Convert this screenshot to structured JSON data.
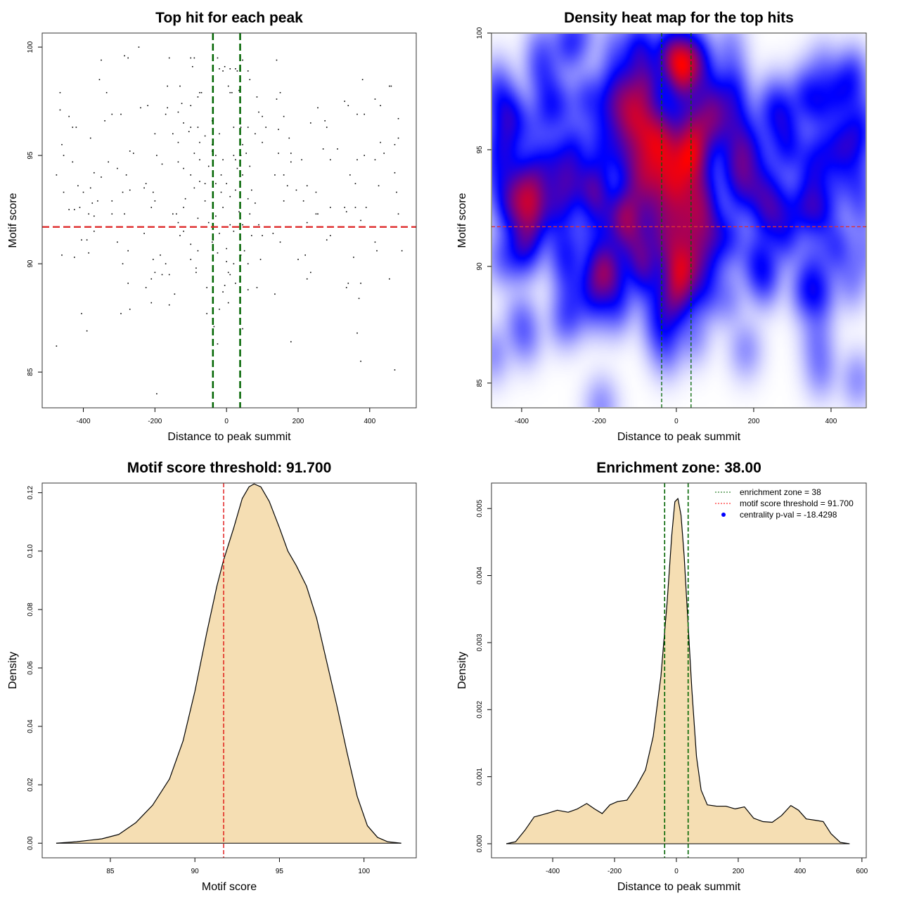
{
  "chart_data": [
    {
      "type": "scatter",
      "title": "Top hit for each peak",
      "xlabel": "Distance to peak summit",
      "ylabel": "Motif score",
      "xlim": [
        -515,
        530
      ],
      "ylim": [
        83.35,
        100.65
      ],
      "xticks": [
        -400,
        -200,
        0,
        200,
        400
      ],
      "yticks": [
        85,
        90,
        95,
        100
      ],
      "vlines": [
        -38,
        38
      ],
      "hline": 91.7,
      "colors": {
        "points": "#000000",
        "vlines": "#006400",
        "hline": "#dd2222"
      },
      "points": [
        [
          -245,
          100
        ],
        [
          -285,
          99.6
        ],
        [
          -275,
          99.5
        ],
        [
          -160,
          99.5
        ],
        [
          -100,
          99.5
        ],
        [
          -90,
          99.5
        ],
        [
          -25,
          99.5
        ],
        [
          -350,
          99.4
        ],
        [
          140,
          99.4
        ],
        [
          45,
          99.4
        ],
        [
          -95,
          99.1
        ],
        [
          -5,
          99.1
        ],
        [
          -20,
          99.0
        ],
        [
          10,
          99.0
        ],
        [
          25,
          99.0
        ],
        [
          30,
          98.9
        ],
        [
          60,
          98.9
        ],
        [
          -10,
          98.9
        ],
        [
          -355,
          98.5
        ],
        [
          -165,
          98.2
        ],
        [
          -130,
          98.2
        ],
        [
          5,
          98.2
        ],
        [
          65,
          98.5
        ],
        [
          380,
          98.5
        ],
        [
          455,
          98.2
        ],
        [
          460,
          98.2
        ],
        [
          -465,
          97.9
        ],
        [
          -335,
          97.9
        ],
        [
          -80,
          97.7
        ],
        [
          -75,
          97.9
        ],
        [
          -70,
          97.9
        ],
        [
          10,
          97.9
        ],
        [
          15,
          97.9
        ],
        [
          35,
          98.0
        ],
        [
          85,
          97.7
        ],
        [
          150,
          97.9
        ],
        [
          -125,
          97.4
        ],
        [
          -100,
          97.3
        ],
        [
          -240,
          97.2
        ],
        [
          -220,
          97.3
        ],
        [
          -165,
          97.2
        ],
        [
          140,
          97.6
        ],
        [
          255,
          97.2
        ],
        [
          330,
          97.5
        ],
        [
          340,
          97.3
        ],
        [
          415,
          97.6
        ],
        [
          430,
          97.3
        ],
        [
          -465,
          97.1
        ],
        [
          -440,
          96.8
        ],
        [
          -320,
          96.9
        ],
        [
          -295,
          96.9
        ],
        [
          -170,
          96.9
        ],
        [
          -135,
          97.0
        ],
        [
          90,
          97.0
        ],
        [
          100,
          96.8
        ],
        [
          160,
          96.8
        ],
        [
          365,
          96.9
        ],
        [
          385,
          96.9
        ],
        [
          480,
          96.7
        ],
        [
          -340,
          96.6
        ],
        [
          -120,
          96.5
        ],
        [
          -100,
          96.3
        ],
        [
          -105,
          96.1
        ],
        [
          -80,
          96.3
        ],
        [
          -40,
          96.6
        ],
        [
          20,
          96.3
        ],
        [
          40,
          96.3
        ],
        [
          60,
          96.3
        ],
        [
          110,
          96.3
        ],
        [
          145,
          96.2
        ],
        [
          275,
          96.6
        ],
        [
          280,
          96.3
        ],
        [
          235,
          96.5
        ],
        [
          -430,
          96.3
        ],
        [
          -420,
          96.3
        ],
        [
          -200,
          96.0
        ],
        [
          -150,
          96.0
        ],
        [
          -60,
          95.9
        ],
        [
          -20,
          96.0
        ],
        [
          80,
          96.0
        ],
        [
          -380,
          95.8
        ],
        [
          -135,
          95.6
        ],
        [
          -75,
          95.6
        ],
        [
          -40,
          95.5
        ],
        [
          45,
          95.5
        ],
        [
          100,
          95.6
        ],
        [
          175,
          95.8
        ],
        [
          430,
          95.6
        ],
        [
          470,
          95.5
        ],
        [
          480,
          95.8
        ],
        [
          -460,
          95.5
        ],
        [
          -455,
          95.0
        ],
        [
          -270,
          95.2
        ],
        [
          -260,
          95.1
        ],
        [
          -195,
          95.0
        ],
        [
          -90,
          95.1
        ],
        [
          -40,
          95.2
        ],
        [
          -30,
          95.0
        ],
        [
          20,
          95.0
        ],
        [
          40,
          95.0
        ],
        [
          55,
          95.1
        ],
        [
          145,
          95.1
        ],
        [
          180,
          95.1
        ],
        [
          270,
          95.3
        ],
        [
          310,
          95.3
        ],
        [
          385,
          95.0
        ],
        [
          440,
          95.1
        ],
        [
          -430,
          94.7
        ],
        [
          -330,
          94.7
        ],
        [
          -180,
          94.6
        ],
        [
          -135,
          94.7
        ],
        [
          -75,
          94.8
        ],
        [
          -10,
          94.8
        ],
        [
          25,
          94.8
        ],
        [
          65,
          94.5
        ],
        [
          180,
          94.7
        ],
        [
          210,
          94.8
        ],
        [
          290,
          94.8
        ],
        [
          365,
          94.8
        ],
        [
          415,
          94.8
        ],
        [
          -305,
          94.4
        ],
        [
          -120,
          94.4
        ],
        [
          -50,
          94.5
        ],
        [
          30,
          94.4
        ],
        [
          -475,
          94.1
        ],
        [
          -350,
          94.0
        ],
        [
          -280,
          94.1
        ],
        [
          -100,
          94.1
        ],
        [
          -15,
          94.1
        ],
        [
          45,
          94.1
        ],
        [
          135,
          94.1
        ],
        [
          160,
          94.1
        ],
        [
          345,
          94.1
        ],
        [
          470,
          94.2
        ],
        [
          -370,
          94.2
        ],
        [
          -75,
          93.8
        ],
        [
          -30,
          93.7
        ],
        [
          -60,
          93.7
        ],
        [
          0,
          93.7
        ],
        [
          170,
          93.6
        ],
        [
          225,
          93.6
        ],
        [
          360,
          93.7
        ],
        [
          425,
          93.6
        ],
        [
          -415,
          93.6
        ],
        [
          -380,
          93.5
        ],
        [
          -230,
          93.5
        ],
        [
          -225,
          93.7
        ],
        [
          -270,
          93.4
        ],
        [
          -90,
          93.5
        ],
        [
          -15,
          93.3
        ],
        [
          25,
          93.4
        ],
        [
          70,
          93.4
        ],
        [
          195,
          93.4
        ],
        [
          -455,
          93.3
        ],
        [
          -400,
          93.3
        ],
        [
          -205,
          93.3
        ],
        [
          -290,
          93.3
        ],
        [
          250,
          93.3
        ],
        [
          475,
          93.3
        ],
        [
          -320,
          92.9
        ],
        [
          -200,
          92.9
        ],
        [
          -115,
          93.0
        ],
        [
          -60,
          92.9
        ],
        [
          10,
          93.1
        ],
        [
          60,
          93.0
        ],
        [
          160,
          92.9
        ],
        [
          215,
          92.9
        ],
        [
          -440,
          92.5
        ],
        [
          -425,
          92.5
        ],
        [
          -410,
          92.6
        ],
        [
          -375,
          92.8
        ],
        [
          -360,
          92.9
        ],
        [
          -210,
          92.6
        ],
        [
          -120,
          92.6
        ],
        [
          -10,
          92.6
        ],
        [
          35,
          92.4
        ],
        [
          80,
          92.8
        ],
        [
          290,
          92.6
        ],
        [
          330,
          92.6
        ],
        [
          360,
          92.6
        ],
        [
          390,
          92.6
        ],
        [
          -385,
          92.3
        ],
        [
          -320,
          92.3
        ],
        [
          -285,
          92.3
        ],
        [
          -150,
          92.3
        ],
        [
          -140,
          92.3
        ],
        [
          -30,
          92.2
        ],
        [
          65,
          92.3
        ],
        [
          255,
          92.3
        ],
        [
          335,
          92.4
        ],
        [
          480,
          92.3
        ],
        [
          -370,
          92.2
        ],
        [
          -80,
          92.1
        ],
        [
          -50,
          91.9
        ],
        [
          10,
          91.8
        ],
        [
          45,
          91.8
        ],
        [
          90,
          91.8
        ],
        [
          225,
          91.9
        ],
        [
          250,
          92.3
        ],
        [
          375,
          92.0
        ],
        [
          -135,
          91.9
        ],
        [
          -180,
          91.7
        ],
        [
          -230,
          91.4
        ],
        [
          -370,
          91.5
        ],
        [
          -120,
          91.5
        ],
        [
          -20,
          91.4
        ],
        [
          20,
          91.5
        ],
        [
          70,
          91.3
        ],
        [
          100,
          91.3
        ],
        [
          130,
          91.4
        ],
        [
          290,
          91.3
        ],
        [
          -405,
          91.1
        ],
        [
          -390,
          91.1
        ],
        [
          -305,
          91.0
        ],
        [
          -130,
          91.3
        ],
        [
          -100,
          90.9
        ],
        [
          -40,
          91.0
        ],
        [
          0,
          90.7
        ],
        [
          50,
          90.6
        ],
        [
          150,
          91.0
        ],
        [
          280,
          91.1
        ],
        [
          415,
          91.0
        ],
        [
          -385,
          90.5
        ],
        [
          -460,
          90.4
        ],
        [
          -425,
          90.3
        ],
        [
          -275,
          90.6
        ],
        [
          -185,
          90.4
        ],
        [
          -80,
          90.6
        ],
        [
          -25,
          90.5
        ],
        [
          40,
          90.4
        ],
        [
          95,
          90.2
        ],
        [
          200,
          90.2
        ],
        [
          220,
          90.4
        ],
        [
          355,
          90.3
        ],
        [
          420,
          90.6
        ],
        [
          490,
          90.6
        ],
        [
          -290,
          90.0
        ],
        [
          -205,
          90.2
        ],
        [
          -170,
          90.0
        ],
        [
          -100,
          90.2
        ],
        [
          0,
          90.1
        ],
        [
          20,
          90.0
        ],
        [
          60,
          90.0
        ],
        [
          -85,
          89.8
        ],
        [
          -200,
          89.6
        ],
        [
          -180,
          89.5
        ],
        [
          -160,
          89.5
        ],
        [
          -85,
          89.6
        ],
        [
          5,
          89.6
        ],
        [
          10,
          89.5
        ],
        [
          235,
          89.6
        ],
        [
          -210,
          89.3
        ],
        [
          -275,
          89.1
        ],
        [
          -225,
          88.9
        ],
        [
          -55,
          88.9
        ],
        [
          -5,
          89.0
        ],
        [
          25,
          89.1
        ],
        [
          60,
          88.8
        ],
        [
          85,
          88.9
        ],
        [
          225,
          89.3
        ],
        [
          335,
          88.9
        ],
        [
          340,
          89.1
        ],
        [
          375,
          89.1
        ],
        [
          455,
          89.3
        ],
        [
          -145,
          88.6
        ],
        [
          -10,
          88.7
        ],
        [
          135,
          88.6
        ],
        [
          370,
          88.4
        ],
        [
          -210,
          88.2
        ],
        [
          -160,
          88.1
        ],
        [
          5,
          88.2
        ],
        [
          -270,
          87.9
        ],
        [
          -20,
          87.9
        ],
        [
          -405,
          87.7
        ],
        [
          -295,
          87.7
        ],
        [
          -55,
          87.7
        ],
        [
          -390,
          86.9
        ],
        [
          -35,
          87.1
        ],
        [
          45,
          87.0
        ],
        [
          -475,
          86.2
        ],
        [
          -25,
          86.3
        ],
        [
          180,
          86.4
        ],
        [
          365,
          86.8
        ],
        [
          375,
          85.5
        ],
        [
          470,
          85.1
        ],
        [
          -195,
          84.0
        ]
      ]
    },
    {
      "type": "heatmap",
      "title": "Density heat map for the top hits",
      "xlabel": "Distance to peak summit",
      "ylabel": "Motif score",
      "xlim": [
        -478,
        491
      ],
      "ylim": [
        83.94,
        100
      ],
      "xticks": [
        -400,
        -200,
        0,
        200,
        400
      ],
      "yticks": [
        85,
        90,
        95,
        100
      ],
      "vlines": [
        -38,
        38
      ],
      "hline": 91.7,
      "colorscale": [
        "#ffffff",
        "#0000ff",
        "#ff0000"
      ],
      "colors": {
        "vlines": "#006400",
        "hline": "#dd3333"
      }
    },
    {
      "type": "area",
      "title": "Motif score threshold: 91.700",
      "xlabel": "Motif score",
      "ylabel": "Density",
      "xlim": [
        80.97,
        103.09
      ],
      "ylim": [
        -0.005,
        0.1233
      ],
      "xticks": [
        85,
        90,
        95,
        100
      ],
      "yticks": [
        "0.00",
        "0.02",
        "0.04",
        "0.06",
        "0.08",
        "0.10",
        "0.12"
      ],
      "vline": 91.7,
      "colors": {
        "fill": "#f5deb3",
        "line": "#000000",
        "vline": "#dd0000"
      },
      "x": [
        81.8,
        83,
        84.5,
        85.5,
        86.5,
        87.5,
        88.5,
        89.3,
        90,
        90.7,
        91.3,
        91.7,
        92.3,
        92.8,
        93.2,
        93.5,
        93.9,
        94.4,
        95,
        95.5,
        96,
        96.6,
        97.2,
        97.8,
        98.4,
        99,
        99.6,
        100.2,
        100.8,
        101.4,
        102.2
      ],
      "y": [
        0,
        0.0005,
        0.0015,
        0.003,
        0.007,
        0.013,
        0.022,
        0.035,
        0.052,
        0.072,
        0.088,
        0.097,
        0.108,
        0.118,
        0.122,
        0.123,
        0.122,
        0.117,
        0.108,
        0.1,
        0.095,
        0.088,
        0.077,
        0.062,
        0.047,
        0.031,
        0.016,
        0.006,
        0.002,
        0.0005,
        0
      ]
    },
    {
      "type": "area",
      "title": "Enrichment zone: 38.00",
      "xlabel": "Distance to peak summit",
      "ylabel": "Density",
      "xlim": [
        -598,
        614
      ],
      "ylim": [
        -0.00021,
        0.00538
      ],
      "xticks": [
        -400,
        -200,
        0,
        200,
        400,
        600
      ],
      "yticks": [
        "0.000",
        "0.001",
        "0.002",
        "0.003",
        "0.004",
        "0.005"
      ],
      "vlines": [
        -38,
        38
      ],
      "colors": {
        "fill": "#f5deb3",
        "line": "#000000",
        "vlines": "#006400"
      },
      "x": [
        -550,
        -520,
        -490,
        -460,
        -420,
        -385,
        -350,
        -320,
        -290,
        -265,
        -240,
        -215,
        -190,
        -160,
        -130,
        -100,
        -75,
        -50,
        -30,
        -15,
        -5,
        5,
        15,
        25,
        35,
        50,
        65,
        80,
        100,
        130,
        160,
        190,
        220,
        250,
        280,
        310,
        340,
        370,
        395,
        420,
        450,
        475,
        500,
        530,
        560
      ],
      "y": [
        0,
        3e-05,
        0.0002,
        0.0004,
        0.00045,
        0.0005,
        0.00047,
        0.00052,
        0.0006,
        0.00052,
        0.00045,
        0.00058,
        0.00063,
        0.00065,
        0.00085,
        0.0011,
        0.0016,
        0.0025,
        0.0036,
        0.0046,
        0.0051,
        0.00515,
        0.0049,
        0.0043,
        0.0035,
        0.0023,
        0.0013,
        0.0008,
        0.00058,
        0.00056,
        0.00056,
        0.00052,
        0.00055,
        0.00038,
        0.00033,
        0.00032,
        0.00042,
        0.00057,
        0.0005,
        0.00037,
        0.00035,
        0.00033,
        0.00015,
        2e-05,
        0
      ],
      "legend": {
        "position": "top-right",
        "items": [
          {
            "label": "enrichment zone = 38",
            "style": "dotted",
            "color": "#006400"
          },
          {
            "label": "motif score threshold = 91.700",
            "style": "dotted",
            "color": "#ff0000"
          },
          {
            "label": "centrality p-val = -18.4298",
            "style": "point",
            "color": "#0000ff"
          }
        ]
      }
    }
  ]
}
